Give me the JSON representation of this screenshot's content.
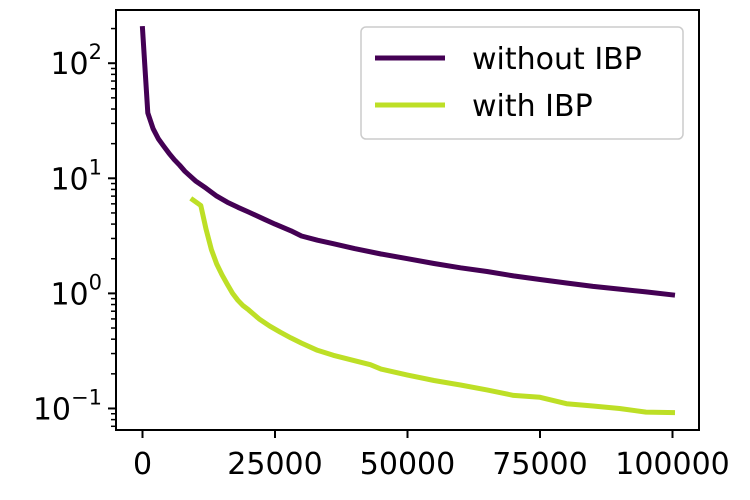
{
  "chart_data": {
    "type": "line",
    "title": "",
    "xlabel": "",
    "ylabel": "",
    "xlim": [
      -5000,
      105000
    ],
    "ylim": [
      0.065,
      290
    ],
    "yscale": "log",
    "grid": false,
    "legend_position": "top-right",
    "x_ticks": [
      {
        "value": 0,
        "label": "0"
      },
      {
        "value": 25000,
        "label": "25000"
      },
      {
        "value": 50000,
        "label": "50000"
      },
      {
        "value": 75000,
        "label": "75000"
      },
      {
        "value": 100000,
        "label": "100000"
      }
    ],
    "y_ticks": [
      {
        "value": 0.1,
        "base": "10",
        "exp": "−1"
      },
      {
        "value": 1,
        "base": "10",
        "exp": "0"
      },
      {
        "value": 10,
        "base": "10",
        "exp": "1"
      },
      {
        "value": 100,
        "base": "10",
        "exp": "2"
      }
    ],
    "series": [
      {
        "name": "without IBP",
        "color": "#440154",
        "x": [
          0,
          1000,
          2000,
          3000,
          4000,
          5000,
          6000,
          7000,
          8000,
          10000,
          12000,
          14000,
          16000,
          18000,
          20000,
          23000,
          25000,
          28000,
          30000,
          33000,
          36000,
          40000,
          45000,
          50000,
          55000,
          60000,
          65000,
          70000,
          75000,
          80000,
          85000,
          90000,
          95000,
          100000
        ],
        "y": [
          200,
          37,
          27,
          22,
          19,
          16.5,
          14.5,
          13,
          11.5,
          9.5,
          8.2,
          7,
          6.2,
          5.6,
          5.1,
          4.4,
          4.0,
          3.5,
          3.15,
          2.9,
          2.7,
          2.45,
          2.2,
          2.0,
          1.82,
          1.67,
          1.55,
          1.42,
          1.32,
          1.23,
          1.15,
          1.09,
          1.03,
          0.97
        ]
      },
      {
        "name": "with IBP",
        "color": "#bddf26",
        "x": [
          9500,
          11000,
          12000,
          13000,
          14000,
          15000,
          16000,
          17000,
          18000,
          19000,
          20000,
          22000,
          24000,
          26000,
          28000,
          30000,
          33000,
          36000,
          40000,
          43000,
          45000,
          50000,
          55000,
          60000,
          65000,
          70000,
          75000,
          80000,
          85000,
          90000,
          95000,
          100000
        ],
        "y": [
          6.5,
          5.8,
          3.6,
          2.4,
          1.8,
          1.45,
          1.2,
          1.0,
          0.87,
          0.78,
          0.72,
          0.6,
          0.52,
          0.46,
          0.41,
          0.37,
          0.32,
          0.29,
          0.26,
          0.24,
          0.22,
          0.195,
          0.175,
          0.16,
          0.145,
          0.13,
          0.125,
          0.11,
          0.105,
          0.1,
          0.093,
          0.092
        ]
      }
    ]
  }
}
